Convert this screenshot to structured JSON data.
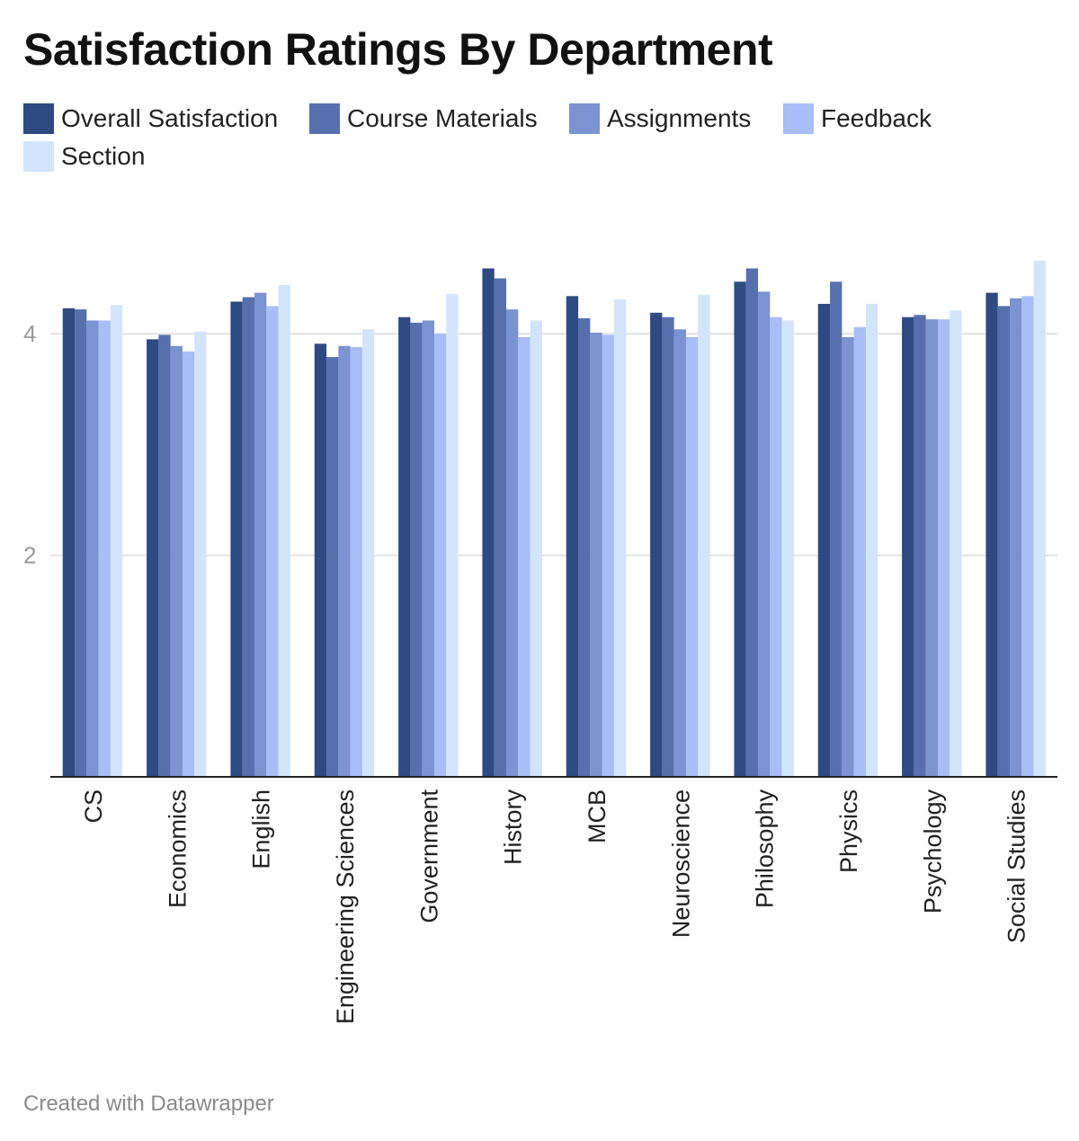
{
  "chart_data": {
    "type": "bar",
    "title": "Satisfaction Ratings By Department",
    "xlabel": "",
    "ylabel": "",
    "ylim": [
      0,
      4.8
    ],
    "yticks": [
      2,
      4
    ],
    "yticks_labels": [
      "2",
      "4"
    ],
    "grid": true,
    "legend_position": "top-left",
    "categories": [
      "CS",
      "Economics",
      "English",
      "Engineering Sciences",
      "Government",
      "History",
      "MCB",
      "Neuroscience",
      "Philosophy",
      "Physics",
      "Psychology",
      "Social Studies"
    ],
    "series": [
      {
        "name": "Overall Satisfaction",
        "color": "#2e4a82",
        "values": [
          4.23,
          3.95,
          4.29,
          3.91,
          4.15,
          4.59,
          4.34,
          4.19,
          4.47,
          4.27,
          4.15,
          4.37
        ]
      },
      {
        "name": "Course Materials",
        "color": "#5670ad",
        "values": [
          4.22,
          3.99,
          4.33,
          3.79,
          4.1,
          4.5,
          4.14,
          4.15,
          4.59,
          4.47,
          4.17,
          4.25
        ]
      },
      {
        "name": "Assignments",
        "color": "#7b93d1",
        "values": [
          4.12,
          3.89,
          4.37,
          3.89,
          4.12,
          4.22,
          4.01,
          4.04,
          4.38,
          3.97,
          4.13,
          4.32
        ]
      },
      {
        "name": "Feedback",
        "color": "#a9bdf6",
        "values": [
          4.12,
          3.84,
          4.25,
          3.88,
          4.0,
          3.97,
          3.99,
          3.97,
          4.15,
          4.06,
          4.13,
          4.34
        ]
      },
      {
        "name": "Section",
        "color": "#d2e5fb",
        "values": [
          4.26,
          4.02,
          4.44,
          4.04,
          4.36,
          4.12,
          4.31,
          4.35,
          4.12,
          4.27,
          4.21,
          4.66
        ]
      }
    ]
  },
  "footer": {
    "credit": "Created with Datawrapper"
  }
}
